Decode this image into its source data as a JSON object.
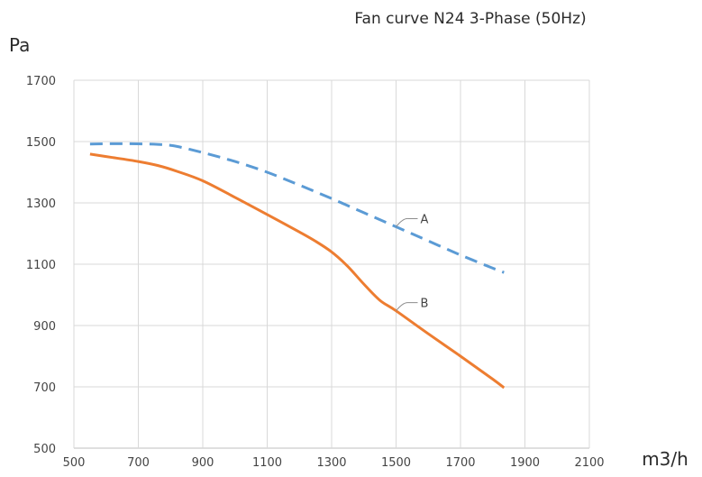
{
  "chart_data": {
    "type": "line",
    "title": "Fan curve N24 3-Phase (50Hz)",
    "xlabel": "m3/h",
    "ylabel": "Pa",
    "xlim": [
      500,
      2100
    ],
    "ylim": [
      500,
      1700
    ],
    "x_ticks": [
      500,
      700,
      900,
      1100,
      1300,
      1500,
      1700,
      1900,
      2100
    ],
    "y_ticks": [
      500,
      700,
      900,
      1100,
      1300,
      1500,
      1700
    ],
    "grid": true,
    "series": [
      {
        "name": "A",
        "color": "#5b9bd5",
        "style": "dashed",
        "points": [
          [
            550,
            1492
          ],
          [
            650,
            1493
          ],
          [
            760,
            1491
          ],
          [
            820,
            1484
          ],
          [
            900,
            1464
          ],
          [
            1000,
            1435
          ],
          [
            1100,
            1400
          ],
          [
            1200,
            1358
          ],
          [
            1300,
            1314
          ],
          [
            1400,
            1268
          ],
          [
            1500,
            1222
          ],
          [
            1600,
            1176
          ],
          [
            1700,
            1130
          ],
          [
            1800,
            1087
          ],
          [
            1835,
            1073
          ]
        ]
      },
      {
        "name": "B",
        "color": "#ed7d31",
        "style": "solid",
        "points": [
          [
            550,
            1459
          ],
          [
            620,
            1448
          ],
          [
            700,
            1435
          ],
          [
            760,
            1422
          ],
          [
            820,
            1403
          ],
          [
            900,
            1372
          ],
          [
            1000,
            1318
          ],
          [
            1100,
            1262
          ],
          [
            1200,
            1205
          ],
          [
            1250,
            1175
          ],
          [
            1300,
            1140
          ],
          [
            1350,
            1093
          ],
          [
            1400,
            1035
          ],
          [
            1450,
            982
          ],
          [
            1500,
            948
          ],
          [
            1600,
            873
          ],
          [
            1700,
            800
          ],
          [
            1800,
            725
          ],
          [
            1835,
            697
          ]
        ]
      }
    ],
    "annotations": [
      {
        "label": "A",
        "series": "A",
        "at": [
          1500,
          1222
        ]
      },
      {
        "label": "B",
        "series": "B",
        "at": [
          1500,
          948
        ]
      }
    ]
  }
}
